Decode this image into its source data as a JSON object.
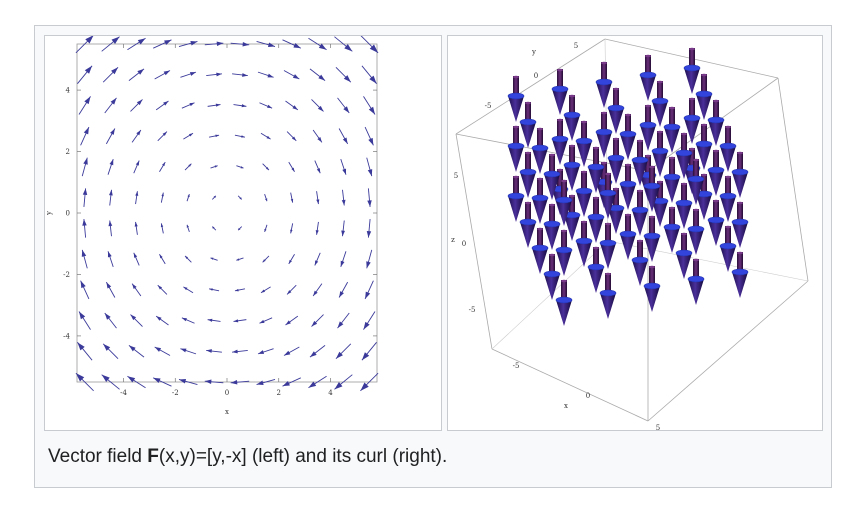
{
  "caption": {
    "prefix": "Vector field ",
    "bold": "F",
    "suffix": "(x,y)=[y,-x] (left) and its curl (right)."
  },
  "left_plot": {
    "xlabel": "x",
    "ylabel": "y",
    "xticks": [
      "-4",
      "-2",
      "0",
      "2",
      "4"
    ],
    "yticks": [
      "4",
      "2",
      "0",
      "-2",
      "-4"
    ],
    "arrow_color": "#3b3a9a"
  },
  "right_plot": {
    "labels": {
      "y_top": "y",
      "z_side": "z",
      "x_bottom": "x"
    },
    "ticks_top": [
      "5",
      "0",
      "-5"
    ],
    "ticks_side": [
      "5",
      "0",
      "-5"
    ],
    "ticks_bottom": [
      "-5",
      "0",
      "5"
    ],
    "cone_color": "#3a2a8c",
    "ring_color": "#3344dd"
  }
}
